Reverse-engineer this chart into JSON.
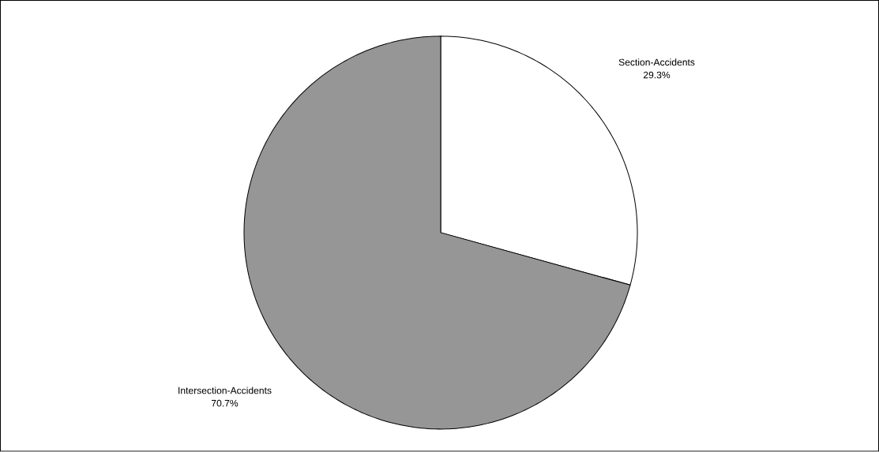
{
  "chart_data": {
    "type": "pie",
    "categories": [
      "Section-Accidents",
      "Intersection-Accidents"
    ],
    "values": [
      29.3,
      70.7
    ],
    "colors": [
      "#ffffff",
      "#969696"
    ],
    "value_labels": [
      "29.3%",
      "70.7%"
    ]
  }
}
